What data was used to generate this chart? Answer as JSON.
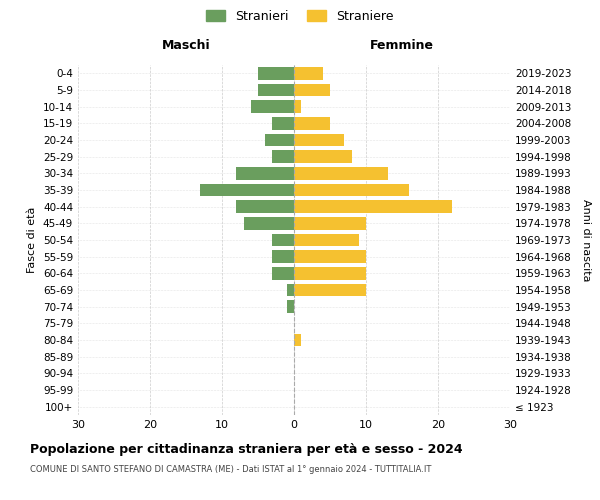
{
  "age_groups": [
    "100+",
    "95-99",
    "90-94",
    "85-89",
    "80-84",
    "75-79",
    "70-74",
    "65-69",
    "60-64",
    "55-59",
    "50-54",
    "45-49",
    "40-44",
    "35-39",
    "30-34",
    "25-29",
    "20-24",
    "15-19",
    "10-14",
    "5-9",
    "0-4"
  ],
  "birth_years": [
    "≤ 1923",
    "1924-1928",
    "1929-1933",
    "1934-1938",
    "1939-1943",
    "1944-1948",
    "1949-1953",
    "1954-1958",
    "1959-1963",
    "1964-1968",
    "1969-1973",
    "1974-1978",
    "1979-1983",
    "1984-1988",
    "1989-1993",
    "1994-1998",
    "1999-2003",
    "2004-2008",
    "2009-2013",
    "2014-2018",
    "2019-2023"
  ],
  "maschi": [
    0,
    0,
    0,
    0,
    0,
    0,
    1,
    1,
    3,
    3,
    3,
    7,
    8,
    13,
    8,
    3,
    4,
    3,
    6,
    5,
    5
  ],
  "femmine": [
    0,
    0,
    0,
    0,
    1,
    0,
    0,
    10,
    10,
    10,
    9,
    10,
    22,
    16,
    13,
    8,
    7,
    5,
    1,
    5,
    4
  ],
  "color_maschi": "#6a9e5e",
  "color_femmine": "#f5c130",
  "title": "Popolazione per cittadinanza straniera per età e sesso - 2024",
  "subtitle": "COMUNE DI SANTO STEFANO DI CAMASTRA (ME) - Dati ISTAT al 1° gennaio 2024 - TUTTITALIA.IT",
  "xlabel_left": "Maschi",
  "xlabel_right": "Femmine",
  "ylabel_left": "Fasce di età",
  "ylabel_right": "Anni di nascita",
  "legend_maschi": "Stranieri",
  "legend_femmine": "Straniere",
  "xlim": 30,
  "background_color": "#ffffff"
}
